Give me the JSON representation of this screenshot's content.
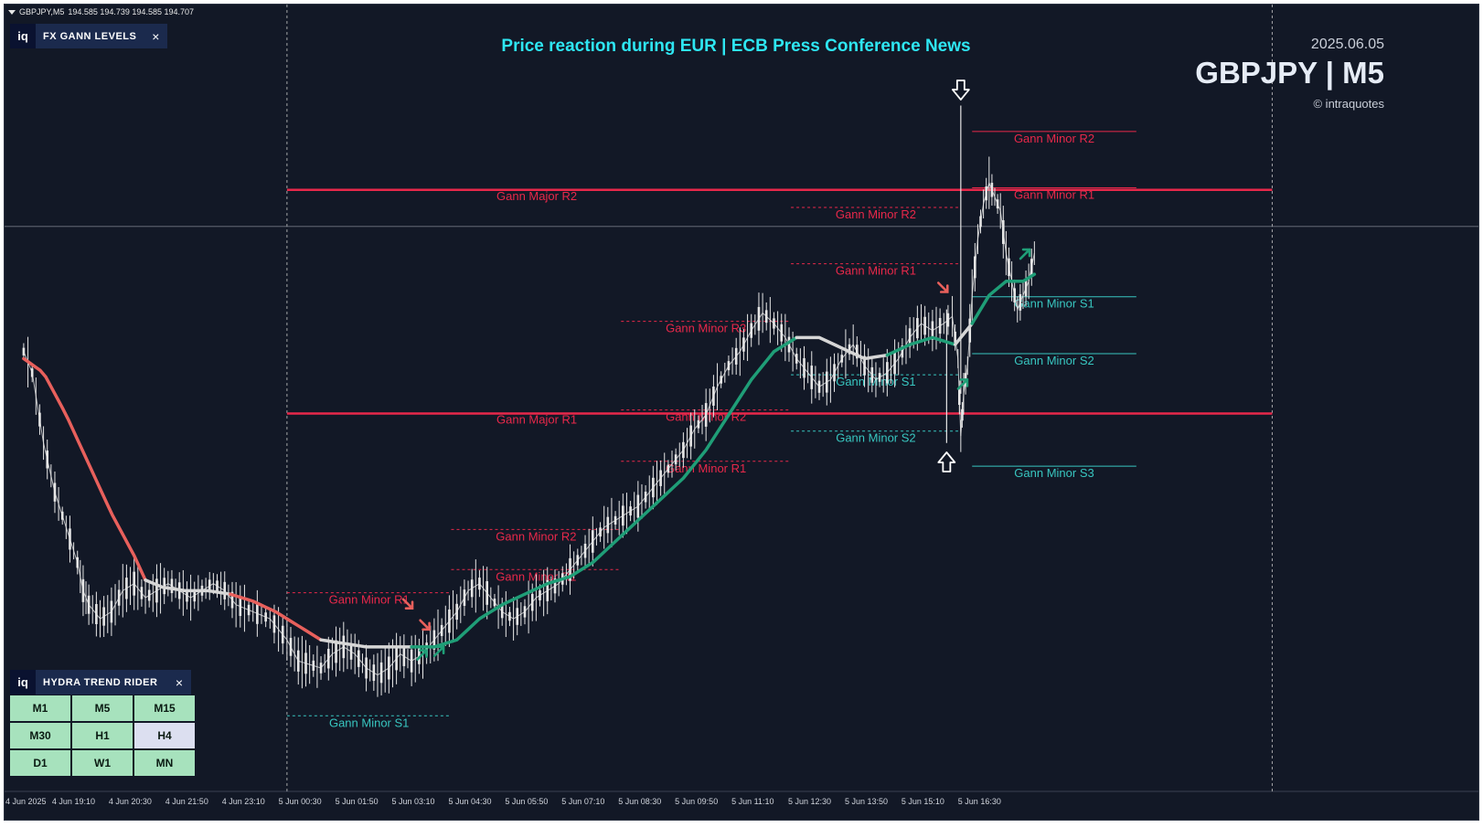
{
  "symbol_line": {
    "symbol": "GBPJPY,M5",
    "ohlc": "194.585 194.739 194.585 194.707"
  },
  "header": {
    "title": "Price reaction during EUR | ECB Press Conference News",
    "date": "2025.06.05",
    "symbol": "GBPJPY | M5",
    "copyright": "© intraquotes"
  },
  "gann_panel": {
    "logo": "iq",
    "title": "FX GANN LEVELS",
    "close": "×"
  },
  "hydra_panel": {
    "logo": "iq",
    "title": "HYDRA TREND RIDER",
    "close": "×",
    "timeframes": [
      {
        "label": "M1",
        "active": false
      },
      {
        "label": "M5",
        "active": false
      },
      {
        "label": "M15",
        "active": false
      },
      {
        "label": "M30",
        "active": false
      },
      {
        "label": "H1",
        "active": false
      },
      {
        "label": "H4",
        "active": true
      },
      {
        "label": "D1",
        "active": false
      },
      {
        "label": "W1",
        "active": false
      },
      {
        "label": "MN",
        "active": false
      }
    ]
  },
  "x_axis": [
    {
      "label": "4 Jun 2025",
      "t": 0
    },
    {
      "label": "4 Jun 19:10",
      "t": 1
    },
    {
      "label": "4 Jun 20:30",
      "t": 2
    },
    {
      "label": "4 Jun 21:50",
      "t": 3
    },
    {
      "label": "4 Jun 23:10",
      "t": 4
    },
    {
      "label": "5 Jun 00:30",
      "t": 5
    },
    {
      "label": "5 Jun 01:50",
      "t": 6
    },
    {
      "label": "5 Jun 03:10",
      "t": 7
    },
    {
      "label": "5 Jun 04:30",
      "t": 8
    },
    {
      "label": "5 Jun 05:50",
      "t": 9
    },
    {
      "label": "5 Jun 07:10",
      "t": 10
    },
    {
      "label": "5 Jun 08:30",
      "t": 11
    },
    {
      "label": "5 Jun 09:50",
      "t": 12
    },
    {
      "label": "5 Jun 11:10",
      "t": 13
    },
    {
      "label": "5 Jun 12:30",
      "t": 14
    },
    {
      "label": "5 Jun 13:50",
      "t": 15
    },
    {
      "label": "5 Jun 15:10",
      "t": 16
    },
    {
      "label": "5 Jun 16:30",
      "t": 17
    }
  ],
  "chart_data": {
    "type": "line",
    "price_range": [
      0,
      100
    ],
    "major_levels": [
      {
        "name": "Gann Major R2",
        "t0": 4.6,
        "t1": 22.0,
        "price": 81.0
      },
      {
        "name": "Gann Major R1",
        "t0": 4.6,
        "t1": 22.0,
        "price": 49.2
      }
    ],
    "minor_levels": [
      {
        "name": "Gann Minor R1",
        "t0": 4.6,
        "t1": 7.5,
        "price": 23.7,
        "kind": "R",
        "dashed": true
      },
      {
        "name": "Gann Minor S1",
        "t0": 4.6,
        "t1": 7.5,
        "price": 6.2,
        "kind": "S",
        "dashed": true
      },
      {
        "name": "Gann Minor R1",
        "t0": 7.5,
        "t1": 10.5,
        "price": 27.0,
        "kind": "R",
        "dashed": true
      },
      {
        "name": "Gann Minor R2",
        "t0": 7.5,
        "t1": 10.5,
        "price": 32.7,
        "kind": "R",
        "dashed": true
      },
      {
        "name": "Gann Minor R3",
        "t0": 10.5,
        "t1": 13.5,
        "price": 62.3,
        "kind": "R",
        "dashed": true
      },
      {
        "name": "Gann Minor R2",
        "t0": 10.5,
        "t1": 13.5,
        "price": 49.7,
        "kind": "R",
        "dashed": true
      },
      {
        "name": "Gann Minor R1",
        "t0": 10.5,
        "t1": 13.5,
        "price": 42.4,
        "kind": "R",
        "dashed": true
      },
      {
        "name": "Gann Minor R2",
        "t0": 13.5,
        "t1": 16.5,
        "price": 78.5,
        "kind": "R",
        "dashed": true
      },
      {
        "name": "Gann Minor R1",
        "t0": 13.5,
        "t1": 16.5,
        "price": 70.5,
        "kind": "R",
        "dashed": true
      },
      {
        "name": "Gann Minor S1",
        "t0": 13.5,
        "t1": 16.5,
        "price": 54.7,
        "kind": "S",
        "dashed": true
      },
      {
        "name": "Gann Minor S2",
        "t0": 13.5,
        "t1": 16.5,
        "price": 46.7,
        "kind": "S",
        "dashed": true
      },
      {
        "name": "Gann Minor R2",
        "t0": 16.7,
        "t1": 19.6,
        "price": 89.3,
        "kind": "R",
        "dashed": false
      },
      {
        "name": "Gann Minor R1",
        "t0": 16.7,
        "t1": 19.6,
        "price": 81.3,
        "kind": "R",
        "dashed": false
      },
      {
        "name": "Gann Minor S1",
        "t0": 16.7,
        "t1": 19.6,
        "price": 65.8,
        "kind": "S",
        "dashed": false
      },
      {
        "name": "Gann Minor S2",
        "t0": 16.7,
        "t1": 19.6,
        "price": 57.7,
        "kind": "S",
        "dashed": false
      },
      {
        "name": "Gann Minor S3",
        "t0": 16.7,
        "t1": 19.6,
        "price": 41.7,
        "kind": "S",
        "dashed": false
      }
    ],
    "price": [
      [
        -0.05,
        58
      ],
      [
        0.1,
        55
      ],
      [
        0.3,
        45
      ],
      [
        0.5,
        38
      ],
      [
        0.7,
        33
      ],
      [
        0.9,
        28
      ],
      [
        1.0,
        24
      ],
      [
        1.1,
        22
      ],
      [
        1.3,
        20
      ],
      [
        1.5,
        21
      ],
      [
        1.7,
        24
      ],
      [
        1.9,
        25
      ],
      [
        2.1,
        23
      ],
      [
        2.3,
        24
      ],
      [
        2.5,
        25
      ],
      [
        2.7,
        24
      ],
      [
        2.9,
        23
      ],
      [
        3.1,
        24
      ],
      [
        3.3,
        25
      ],
      [
        3.5,
        24
      ],
      [
        3.7,
        22
      ],
      [
        4.0,
        21
      ],
      [
        4.3,
        20
      ],
      [
        4.6,
        17
      ],
      [
        4.8,
        14
      ],
      [
        5.0,
        13.5
      ],
      [
        5.2,
        13
      ],
      [
        5.4,
        15
      ],
      [
        5.6,
        16
      ],
      [
        5.8,
        15
      ],
      [
        6.0,
        13
      ],
      [
        6.2,
        12
      ],
      [
        6.4,
        13
      ],
      [
        6.6,
        15
      ],
      [
        6.8,
        14
      ],
      [
        7.0,
        15
      ],
      [
        7.2,
        17
      ],
      [
        7.4,
        19
      ],
      [
        7.6,
        21
      ],
      [
        7.8,
        24
      ],
      [
        8.0,
        25
      ],
      [
        8.2,
        23
      ],
      [
        8.4,
        21
      ],
      [
        8.6,
        20
      ],
      [
        8.8,
        21
      ],
      [
        9.0,
        23
      ],
      [
        9.2,
        24
      ],
      [
        9.4,
        25
      ],
      [
        9.6,
        27
      ],
      [
        9.8,
        29
      ],
      [
        10.0,
        31
      ],
      [
        10.2,
        33
      ],
      [
        10.4,
        34
      ],
      [
        10.6,
        35
      ],
      [
        10.8,
        36
      ],
      [
        11.0,
        38
      ],
      [
        11.2,
        40
      ],
      [
        11.4,
        42
      ],
      [
        11.6,
        44
      ],
      [
        11.8,
        47
      ],
      [
        12.0,
        49
      ],
      [
        12.2,
        53
      ],
      [
        12.4,
        56
      ],
      [
        12.6,
        58
      ],
      [
        12.8,
        61
      ],
      [
        13.0,
        63.5
      ],
      [
        13.2,
        62
      ],
      [
        13.4,
        60
      ],
      [
        13.6,
        57
      ],
      [
        13.8,
        55
      ],
      [
        14.0,
        53
      ],
      [
        14.2,
        54
      ],
      [
        14.4,
        57
      ],
      [
        14.6,
        59
      ],
      [
        14.8,
        56
      ],
      [
        15.0,
        54
      ],
      [
        15.2,
        55
      ],
      [
        15.4,
        57
      ],
      [
        15.6,
        60
      ],
      [
        15.8,
        62
      ],
      [
        16.0,
        61
      ],
      [
        16.2,
        62
      ],
      [
        16.35,
        63
      ],
      [
        16.45,
        57
      ],
      [
        16.5,
        46
      ],
      [
        16.55,
        52
      ],
      [
        16.62,
        56
      ],
      [
        16.7,
        66
      ],
      [
        16.8,
        74
      ],
      [
        16.9,
        79
      ],
      [
        17.0,
        82
      ],
      [
        17.1,
        80
      ],
      [
        17.2,
        78
      ],
      [
        17.3,
        72
      ],
      [
        17.4,
        68
      ],
      [
        17.5,
        64
      ],
      [
        17.6,
        66
      ],
      [
        17.7,
        68
      ],
      [
        17.8,
        72
      ]
    ],
    "trend": [
      [
        -0.05,
        57
      ],
      [
        0.3,
        55
      ],
      [
        0.7,
        49
      ],
      [
        1.1,
        42
      ],
      [
        1.5,
        35
      ],
      [
        1.9,
        29
      ],
      [
        2.1,
        25.5
      ],
      [
        2.4,
        24.5
      ],
      [
        2.8,
        24
      ],
      [
        3.2,
        24
      ],
      [
        3.6,
        23.5
      ],
      [
        4.0,
        22.5
      ],
      [
        4.4,
        21
      ],
      [
        4.8,
        19
      ],
      [
        5.2,
        17
      ],
      [
        5.6,
        16.5
      ],
      [
        6.0,
        16
      ],
      [
        6.4,
        16
      ],
      [
        6.8,
        16
      ],
      [
        7.2,
        16
      ],
      [
        7.6,
        17
      ],
      [
        8.0,
        20
      ],
      [
        8.4,
        22
      ],
      [
        8.8,
        23.5
      ],
      [
        9.2,
        25
      ],
      [
        9.6,
        26
      ],
      [
        10.0,
        28
      ],
      [
        10.4,
        31
      ],
      [
        10.8,
        34
      ],
      [
        11.2,
        37
      ],
      [
        11.6,
        40
      ],
      [
        12.0,
        44
      ],
      [
        12.4,
        49
      ],
      [
        12.8,
        54
      ],
      [
        13.2,
        58
      ],
      [
        13.6,
        60
      ],
      [
        14.0,
        60
      ],
      [
        14.4,
        58.5
      ],
      [
        14.8,
        57
      ],
      [
        15.2,
        57.5
      ],
      [
        15.6,
        59
      ],
      [
        16.0,
        60
      ],
      [
        16.4,
        59
      ],
      [
        16.7,
        62
      ],
      [
        17.0,
        66
      ],
      [
        17.3,
        68
      ],
      [
        17.6,
        68
      ],
      [
        17.8,
        69
      ]
    ],
    "trend_segments": [
      {
        "from": -0.05,
        "to": 2.1,
        "color": "#e8605c"
      },
      {
        "from": 2.1,
        "to": 3.6,
        "color": "#d6d6d6"
      },
      {
        "from": 3.6,
        "to": 5.2,
        "color": "#e8605c"
      },
      {
        "from": 5.2,
        "to": 6.8,
        "color": "#d6d6d6"
      },
      {
        "from": 6.8,
        "to": 7.2,
        "color": "#1f9e77"
      },
      {
        "from": 7.2,
        "to": 13.6,
        "color": "#1f9e77"
      },
      {
        "from": 13.6,
        "to": 14.4,
        "color": "#d6d6d6"
      },
      {
        "from": 14.4,
        "to": 15.2,
        "color": "#d6d6d6"
      },
      {
        "from": 15.2,
        "to": 16.4,
        "color": "#1f9e77"
      },
      {
        "from": 16.4,
        "to": 16.7,
        "color": "#d6d6d6"
      },
      {
        "from": 16.7,
        "to": 17.8,
        "color": "#1f9e77"
      }
    ],
    "signals": [
      {
        "t": 6.75,
        "price": 22,
        "dir": "down"
      },
      {
        "t": 7.05,
        "price": 19,
        "dir": "down"
      },
      {
        "t": 7.0,
        "price": 15,
        "dir": "up"
      },
      {
        "t": 7.3,
        "price": 15.5,
        "dir": "up"
      },
      {
        "t": 16.2,
        "price": 67,
        "dir": "down"
      },
      {
        "t": 16.55,
        "price": 53.5,
        "dir": "up"
      },
      {
        "t": 17.65,
        "price": 72,
        "dir": "up"
      }
    ],
    "news_arrows": [
      {
        "t": 16.5,
        "price": 95,
        "dir": "down"
      },
      {
        "t": 16.25,
        "price": 42.5,
        "dir": "up"
      }
    ],
    "colors": {
      "background": "#121826",
      "resistance": "#e8284a",
      "support": "#38c6c0",
      "candles": "#e6e6e6",
      "vline": "#c8c8c8"
    },
    "vertical_markers": [
      4.6,
      22.0
    ],
    "crosshair_price": 75.8
  }
}
